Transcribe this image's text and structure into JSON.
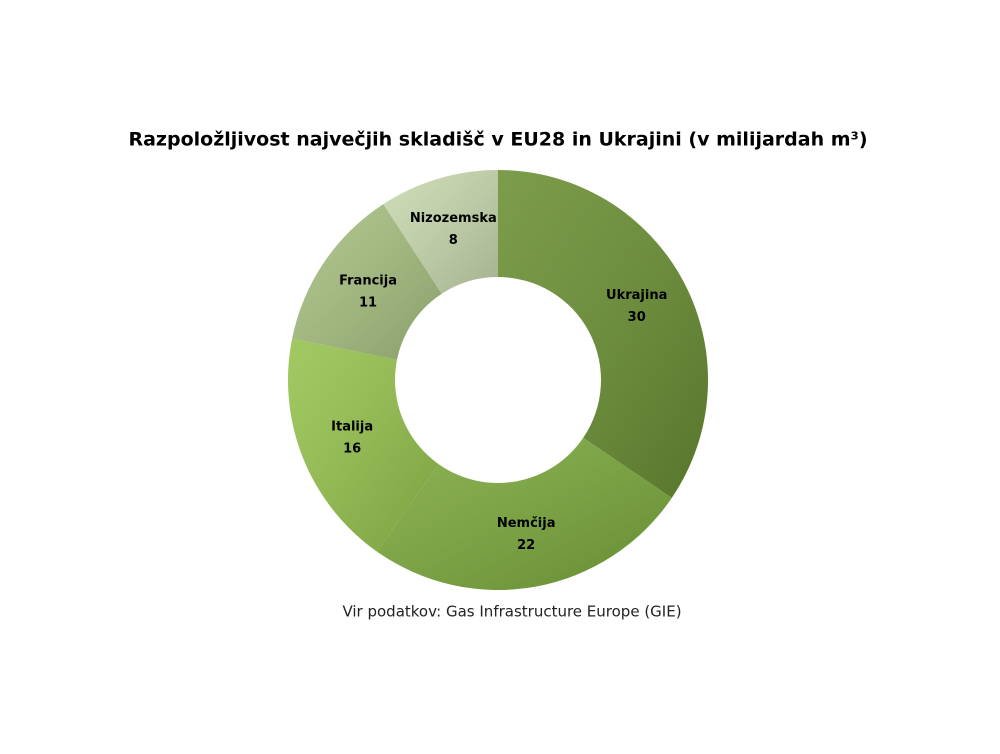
{
  "chart_data": {
    "type": "donut",
    "title": "Razpoložljivost največjih skladišč v EU28 in Ukrajini (v milijardah m³)",
    "source": "Vir podatkov: Gas Infrastructure Europe (GIE)",
    "categories": [
      "Ukrajina",
      "Nemčija",
      "Italija",
      "Francija",
      "Nizozemska"
    ],
    "values": [
      30,
      22,
      16,
      11,
      8
    ],
    "colors": [
      "#6a8f33",
      "#7ba83c",
      "#95c24d",
      "#a7bf80",
      "#c8d8ae"
    ]
  }
}
